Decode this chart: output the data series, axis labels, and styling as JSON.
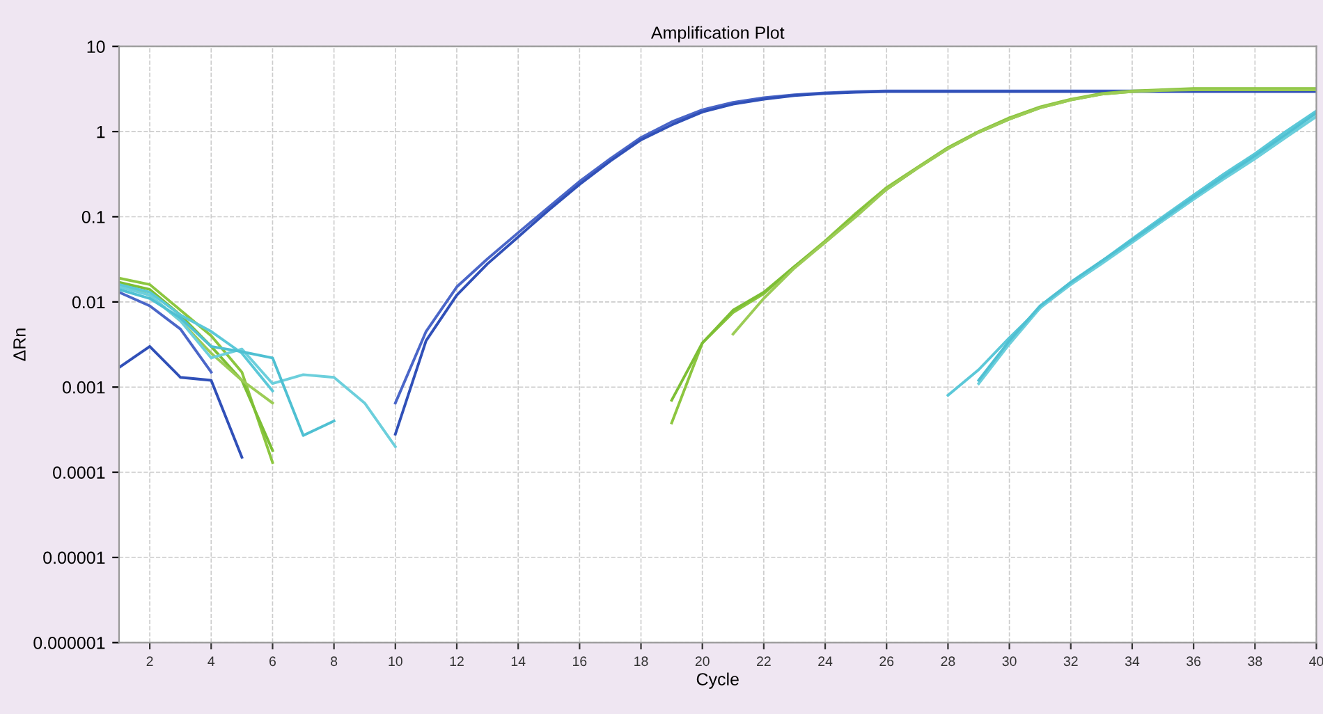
{
  "chart_data": {
    "type": "line",
    "title": "Amplification Plot",
    "xlabel": "Cycle",
    "ylabel": "ΔRn",
    "log": "y",
    "grid": true,
    "marker": "none",
    "line_style": "solid",
    "x": [
      1,
      2,
      3,
      4,
      5,
      6,
      7,
      8,
      9,
      10,
      11,
      12,
      13,
      14,
      15,
      16,
      17,
      18,
      19,
      20,
      21,
      22,
      23,
      24,
      25,
      26,
      27,
      28,
      29,
      30,
      31,
      32,
      33,
      34,
      35,
      36,
      37,
      38,
      39,
      40
    ],
    "xlim": [
      1,
      40
    ],
    "xticks": [
      2,
      4,
      6,
      8,
      10,
      12,
      14,
      16,
      18,
      20,
      22,
      24,
      26,
      28,
      30,
      32,
      34,
      36,
      38,
      40
    ],
    "ylim": [
      1e-06,
      10
    ],
    "yticks": [
      {
        "value": 10,
        "label": "10"
      },
      {
        "value": 1,
        "label": "1"
      },
      {
        "value": 0.1,
        "label": "0.1"
      },
      {
        "value": 0.01,
        "label": "0.01"
      },
      {
        "value": 0.001,
        "label": "0.001"
      },
      {
        "value": 0.0001,
        "label": "0.0001"
      },
      {
        "value": 1e-05,
        "label": "0.00001"
      },
      {
        "value": 1e-06,
        "label": "0.000001"
      }
    ],
    "series": [
      {
        "color": "#4a66c8",
        "values": [
          0.013,
          0.009,
          0.0048,
          0.0015,
          null,
          null,
          null,
          null,
          null,
          0.00065,
          0.0045,
          0.015,
          0.032,
          0.065,
          0.13,
          0.26,
          0.48,
          0.85,
          1.3,
          1.8,
          2.2,
          2.5,
          2.7,
          2.85,
          2.95,
          3.0,
          3.0,
          3.0,
          3.0,
          3.0,
          3.0,
          3.0,
          3.0,
          3.0,
          3.0,
          3.0,
          3.0,
          3.0,
          3.0,
          3.0
        ]
      },
      {
        "color": "#3050b8",
        "values": [
          0.0017,
          0.003,
          0.0013,
          0.0012,
          0.00015,
          null,
          null,
          null,
          null,
          0.00028,
          0.0035,
          0.012,
          0.028,
          0.058,
          0.12,
          0.24,
          0.45,
          0.8,
          1.2,
          1.7,
          2.1,
          2.4,
          2.65,
          2.8,
          2.9,
          2.95,
          2.95,
          2.95,
          2.95,
          2.95,
          2.95,
          2.95,
          2.95,
          2.95,
          2.95,
          2.95,
          2.95,
          2.95,
          2.95,
          2.95
        ]
      },
      {
        "color": "#8cc63f",
        "values": [
          0.019,
          0.016,
          0.008,
          0.004,
          0.0015,
          0.00013,
          null,
          null,
          null,
          null,
          null,
          null,
          null,
          null,
          null,
          null,
          null,
          null,
          0.00038,
          0.0033,
          0.0075,
          0.0125,
          0.026,
          0.052,
          0.11,
          0.22,
          0.38,
          0.65,
          1.0,
          1.45,
          1.95,
          2.4,
          2.8,
          3.0,
          3.1,
          3.2,
          3.2,
          3.2,
          3.2,
          3.2
        ]
      },
      {
        "color": "#7dbf35",
        "values": [
          0.017,
          0.014,
          0.007,
          0.003,
          0.0012,
          0.00018,
          null,
          null,
          null,
          null,
          null,
          null,
          null,
          null,
          null,
          null,
          null,
          null,
          0.0007,
          0.0033,
          0.008,
          0.013,
          0.026,
          0.05,
          0.105,
          0.21,
          0.37,
          0.63,
          0.98,
          1.4,
          1.9,
          2.35,
          2.75,
          2.95,
          3.05,
          3.15,
          3.15,
          3.15,
          3.15,
          3.15
        ]
      },
      {
        "color": "#9ccc55",
        "values": [
          0.016,
          0.012,
          0.006,
          0.0025,
          0.0012,
          0.00065,
          null,
          null,
          null,
          null,
          null,
          null,
          null,
          null,
          null,
          null,
          null,
          null,
          null,
          null,
          0.0042,
          0.011,
          0.025,
          0.05,
          0.1,
          0.21,
          0.37,
          0.63,
          0.98,
          1.4,
          1.9,
          2.35,
          2.75,
          2.95,
          3.05,
          3.1,
          3.1,
          3.1,
          3.1,
          3.1
        ]
      },
      {
        "color": "#5bc8d8",
        "values": [
          0.016,
          0.013,
          0.007,
          0.0045,
          0.0025,
          0.0009,
          null,
          null,
          null,
          null,
          null,
          null,
          null,
          null,
          null,
          null,
          null,
          null,
          null,
          null,
          null,
          null,
          null,
          null,
          null,
          null,
          null,
          0.0008,
          0.0016,
          0.0038,
          0.0085,
          0.017,
          0.03,
          0.055,
          0.1,
          0.18,
          0.32,
          0.55,
          1.0,
          1.75
        ]
      },
      {
        "color": "#6ccfdc",
        "values": [
          0.015,
          0.012,
          0.006,
          0.0022,
          0.0028,
          0.0011,
          0.0014,
          0.0013,
          0.00065,
          0.0002,
          null,
          null,
          null,
          null,
          null,
          null,
          null,
          null,
          null,
          null,
          null,
          null,
          null,
          null,
          null,
          null,
          null,
          null,
          0.0011,
          0.0032,
          0.0085,
          0.016,
          0.028,
          0.05,
          0.09,
          0.16,
          0.28,
          0.48,
          0.85,
          1.5
        ]
      },
      {
        "color": "#4fc0d2",
        "values": [
          0.014,
          0.011,
          0.0065,
          0.003,
          0.0026,
          0.0022,
          0.00027,
          0.0004,
          null,
          null,
          null,
          null,
          null,
          null,
          null,
          null,
          null,
          null,
          null,
          null,
          null,
          null,
          null,
          null,
          null,
          null,
          null,
          null,
          0.0012,
          0.0035,
          0.009,
          0.017,
          0.03,
          0.053,
          0.095,
          0.17,
          0.3,
          0.52,
          0.92,
          1.65
        ]
      }
    ]
  }
}
